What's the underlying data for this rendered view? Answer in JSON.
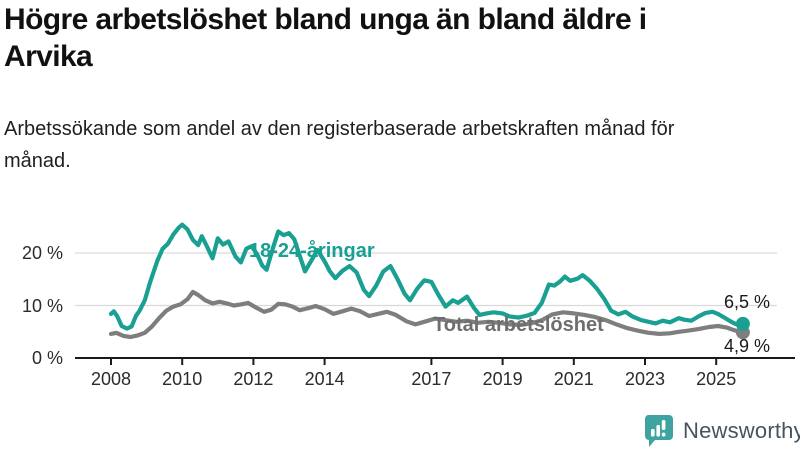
{
  "header": {
    "title": "Högre arbetslöshet bland unga än bland äldre i Arvika",
    "subtitle": "Arbetssökande som andel av den registerbaserade arbetskraften månad för månad."
  },
  "chart_data": {
    "type": "line",
    "title": "Högre arbetslöshet bland unga än bland äldre i Arvika",
    "subtitle": "Arbetssökande som andel av den registerbaserade arbetskraften månad för månad.",
    "xlabel": "",
    "ylabel": "",
    "xlim": [
      2008,
      2025.75
    ],
    "ylim": [
      0,
      27
    ],
    "grid": "horizontal",
    "legend_position": "inline-labels",
    "x_tick_years": [
      2008,
      2010,
      2012,
      2014,
      2017,
      2019,
      2021,
      2023,
      2025
    ],
    "x_tick_labels": [
      "2008",
      "2010",
      "2012",
      "2014",
      "2017",
      "2019",
      "2021",
      "2023",
      "2025"
    ],
    "y_tick_values": [
      0,
      10,
      20
    ],
    "y_tick_labels": [
      "0 %",
      "10 %",
      "20 %"
    ],
    "colors": {
      "grid": "#d9d9d9",
      "axis": "#1a1a1a"
    },
    "series": [
      {
        "name": "18-24-åringar",
        "color": "#1aa093",
        "end_label": "6,5 %",
        "end_value": 6.5,
        "points": [
          [
            2008.0,
            8.4
          ],
          [
            2008.08,
            8.9
          ],
          [
            2008.17,
            8.0
          ],
          [
            2008.3,
            6.1
          ],
          [
            2008.45,
            5.6
          ],
          [
            2008.58,
            6.0
          ],
          [
            2008.7,
            8.0
          ],
          [
            2008.8,
            9.0
          ],
          [
            2008.95,
            11.0
          ],
          [
            2009.1,
            14.5
          ],
          [
            2009.3,
            18.5
          ],
          [
            2009.45,
            20.8
          ],
          [
            2009.6,
            21.8
          ],
          [
            2009.75,
            23.5
          ],
          [
            2009.9,
            24.8
          ],
          [
            2010.0,
            25.4
          ],
          [
            2010.15,
            24.5
          ],
          [
            2010.3,
            22.5
          ],
          [
            2010.45,
            21.5
          ],
          [
            2010.55,
            23.2
          ],
          [
            2010.7,
            21.2
          ],
          [
            2010.85,
            19.0
          ],
          [
            2011.0,
            22.8
          ],
          [
            2011.15,
            21.6
          ],
          [
            2011.3,
            22.2
          ],
          [
            2011.5,
            19.3
          ],
          [
            2011.65,
            18.2
          ],
          [
            2011.8,
            20.8
          ],
          [
            2011.95,
            21.3
          ],
          [
            2012.1,
            19.8
          ],
          [
            2012.25,
            17.6
          ],
          [
            2012.37,
            16.8
          ],
          [
            2012.55,
            21.0
          ],
          [
            2012.7,
            24.1
          ],
          [
            2012.85,
            23.4
          ],
          [
            2013.0,
            23.8
          ],
          [
            2013.15,
            22.6
          ],
          [
            2013.3,
            19.5
          ],
          [
            2013.45,
            16.5
          ],
          [
            2013.65,
            18.8
          ],
          [
            2013.8,
            20.6
          ],
          [
            2014.0,
            18.4
          ],
          [
            2014.15,
            16.5
          ],
          [
            2014.3,
            15.2
          ],
          [
            2014.5,
            16.6
          ],
          [
            2014.7,
            17.5
          ],
          [
            2014.9,
            16.3
          ],
          [
            2015.1,
            13.0
          ],
          [
            2015.25,
            11.8
          ],
          [
            2015.45,
            13.8
          ],
          [
            2015.65,
            16.5
          ],
          [
            2015.85,
            17.5
          ],
          [
            2016.05,
            15.0
          ],
          [
            2016.25,
            12.2
          ],
          [
            2016.4,
            11.0
          ],
          [
            2016.6,
            13.2
          ],
          [
            2016.8,
            14.8
          ],
          [
            2017.0,
            14.5
          ],
          [
            2017.2,
            12.0
          ],
          [
            2017.4,
            9.8
          ],
          [
            2017.6,
            11.0
          ],
          [
            2017.75,
            10.5
          ],
          [
            2018.0,
            11.7
          ],
          [
            2018.2,
            9.5
          ],
          [
            2018.35,
            8.2
          ],
          [
            2018.55,
            8.5
          ],
          [
            2018.75,
            8.7
          ],
          [
            2019.0,
            8.5
          ],
          [
            2019.2,
            7.9
          ],
          [
            2019.45,
            7.7
          ],
          [
            2019.7,
            8.1
          ],
          [
            2019.9,
            8.6
          ],
          [
            2020.1,
            10.5
          ],
          [
            2020.3,
            14.0
          ],
          [
            2020.45,
            13.8
          ],
          [
            2020.6,
            14.5
          ],
          [
            2020.75,
            15.5
          ],
          [
            2020.9,
            14.7
          ],
          [
            2021.1,
            15.1
          ],
          [
            2021.25,
            15.8
          ],
          [
            2021.45,
            14.7
          ],
          [
            2021.65,
            13.2
          ],
          [
            2021.85,
            11.3
          ],
          [
            2022.05,
            9.0
          ],
          [
            2022.25,
            8.3
          ],
          [
            2022.45,
            8.8
          ],
          [
            2022.65,
            7.9
          ],
          [
            2022.9,
            7.2
          ],
          [
            2023.1,
            6.9
          ],
          [
            2023.3,
            6.6
          ],
          [
            2023.5,
            7.1
          ],
          [
            2023.7,
            6.8
          ],
          [
            2023.95,
            7.6
          ],
          [
            2024.1,
            7.3
          ],
          [
            2024.3,
            7.1
          ],
          [
            2024.5,
            7.9
          ],
          [
            2024.7,
            8.6
          ],
          [
            2024.9,
            8.8
          ],
          [
            2025.05,
            8.4
          ],
          [
            2025.25,
            7.6
          ],
          [
            2025.45,
            6.8
          ],
          [
            2025.6,
            6.3
          ],
          [
            2025.75,
            6.5
          ]
        ]
      },
      {
        "name": "Total arbetslöshet",
        "color": "#7e7e7e",
        "end_label": "4,9 %",
        "end_value": 4.9,
        "points": [
          [
            2008.0,
            4.6
          ],
          [
            2008.15,
            4.8
          ],
          [
            2008.35,
            4.2
          ],
          [
            2008.55,
            4.0
          ],
          [
            2008.75,
            4.3
          ],
          [
            2008.95,
            4.8
          ],
          [
            2009.15,
            6.0
          ],
          [
            2009.35,
            7.6
          ],
          [
            2009.55,
            9.0
          ],
          [
            2009.75,
            9.8
          ],
          [
            2009.95,
            10.2
          ],
          [
            2010.15,
            11.2
          ],
          [
            2010.3,
            12.6
          ],
          [
            2010.45,
            12.0
          ],
          [
            2010.65,
            11.0
          ],
          [
            2010.85,
            10.4
          ],
          [
            2011.05,
            10.7
          ],
          [
            2011.25,
            10.4
          ],
          [
            2011.45,
            10.0
          ],
          [
            2011.65,
            10.2
          ],
          [
            2011.85,
            10.5
          ],
          [
            2012.05,
            9.7
          ],
          [
            2012.3,
            8.8
          ],
          [
            2012.5,
            9.2
          ],
          [
            2012.7,
            10.3
          ],
          [
            2012.9,
            10.2
          ],
          [
            2013.1,
            9.8
          ],
          [
            2013.3,
            9.1
          ],
          [
            2013.55,
            9.5
          ],
          [
            2013.75,
            9.9
          ],
          [
            2014.0,
            9.3
          ],
          [
            2014.25,
            8.4
          ],
          [
            2014.5,
            8.9
          ],
          [
            2014.75,
            9.4
          ],
          [
            2015.0,
            8.9
          ],
          [
            2015.25,
            8.0
          ],
          [
            2015.5,
            8.4
          ],
          [
            2015.75,
            8.8
          ],
          [
            2016.0,
            8.2
          ],
          [
            2016.3,
            7.0
          ],
          [
            2016.55,
            6.4
          ],
          [
            2016.8,
            6.9
          ],
          [
            2017.1,
            7.5
          ],
          [
            2017.4,
            7.2
          ],
          [
            2017.7,
            6.9
          ],
          [
            2018.0,
            7.1
          ],
          [
            2018.3,
            6.7
          ],
          [
            2018.6,
            6.9
          ],
          [
            2018.9,
            6.7
          ],
          [
            2019.2,
            6.4
          ],
          [
            2019.5,
            6.3
          ],
          [
            2019.8,
            6.6
          ],
          [
            2020.1,
            7.2
          ],
          [
            2020.4,
            8.3
          ],
          [
            2020.7,
            8.7
          ],
          [
            2021.0,
            8.5
          ],
          [
            2021.3,
            8.2
          ],
          [
            2021.6,
            7.8
          ],
          [
            2021.9,
            7.2
          ],
          [
            2022.2,
            6.4
          ],
          [
            2022.5,
            5.7
          ],
          [
            2022.8,
            5.2
          ],
          [
            2023.1,
            4.8
          ],
          [
            2023.4,
            4.6
          ],
          [
            2023.7,
            4.7
          ],
          [
            2023.95,
            5.0
          ],
          [
            2024.2,
            5.2
          ],
          [
            2024.5,
            5.5
          ],
          [
            2024.8,
            5.9
          ],
          [
            2025.05,
            6.1
          ],
          [
            2025.3,
            5.8
          ],
          [
            2025.5,
            5.3
          ],
          [
            2025.75,
            4.9
          ]
        ]
      }
    ]
  },
  "branding": {
    "name": "Newsworthy",
    "icon": "bar-chart-speech-bubble-icon",
    "icon_color": "#3fa3a0",
    "text_color": "#47545f"
  }
}
